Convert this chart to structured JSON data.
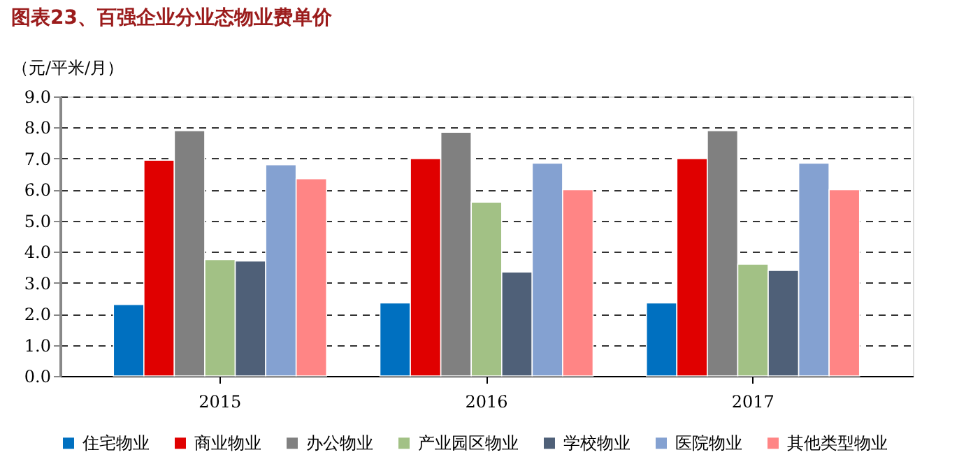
{
  "chart_data": {
    "type": "bar",
    "title": "图表23、百强企业分业态物业费单价",
    "ylabel": "（元/平米/月）",
    "categories": [
      "2015",
      "2016",
      "2017"
    ],
    "series": [
      {
        "name": "住宅物业",
        "color": "#0070c0",
        "values": [
          2.3,
          2.35,
          2.35
        ]
      },
      {
        "name": "商业物业",
        "color": "#e00000",
        "values": [
          6.95,
          7.0,
          7.0
        ]
      },
      {
        "name": "办公物业",
        "color": "#808080",
        "values": [
          7.9,
          7.85,
          7.9
        ]
      },
      {
        "name": "产业园区物业",
        "color": "#a2c185",
        "values": [
          3.75,
          5.6,
          3.6
        ]
      },
      {
        "name": "学校物业",
        "color": "#4f6078",
        "values": [
          3.7,
          3.35,
          3.4
        ]
      },
      {
        "name": "医院物业",
        "color": "#84a1d1",
        "values": [
          6.8,
          6.85,
          6.85
        ]
      },
      {
        "name": "其他类型物业",
        "color": "#ff8585",
        "values": [
          6.35,
          6.0,
          6.0
        ]
      }
    ],
    "ylim": [
      0,
      9
    ],
    "yticks": [
      {
        "value": 0,
        "label": "0.0"
      },
      {
        "value": 1,
        "label": "1.0"
      },
      {
        "value": 2,
        "label": "2.0"
      },
      {
        "value": 3,
        "label": "3.0"
      },
      {
        "value": 4,
        "label": "4.0"
      },
      {
        "value": 5,
        "label": "5.0"
      },
      {
        "value": 6,
        "label": "6.0"
      },
      {
        "value": 7,
        "label": "7.0"
      },
      {
        "value": 8,
        "label": "8.0"
      },
      {
        "value": 9,
        "label": "9.0"
      }
    ],
    "grid": "y",
    "legend": "bottom"
  }
}
